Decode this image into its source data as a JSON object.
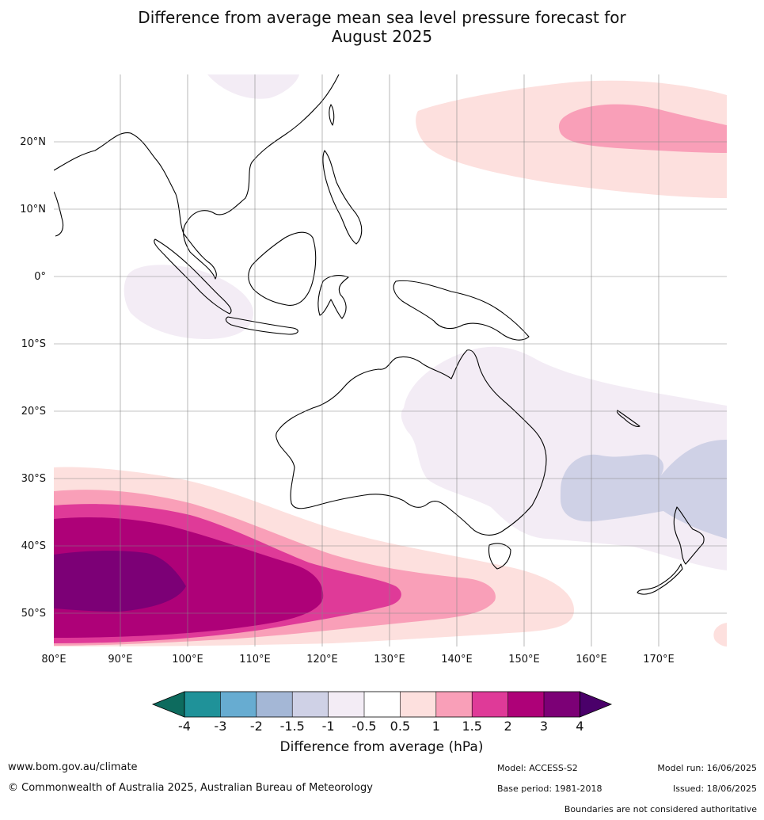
{
  "title_line1": "Difference from average mean sea level pressure forecast for",
  "title_line2": "August 2025",
  "lat_labels": [
    "20°N",
    "10°N",
    "0°",
    "10°S",
    "20°S",
    "30°S",
    "40°S",
    "50°S"
  ],
  "lon_labels": [
    "80°E",
    "90°E",
    "100°E",
    "110°E",
    "120°E",
    "130°E",
    "140°E",
    "150°E",
    "160°E",
    "170°E"
  ],
  "colorbar": {
    "title": "Difference from average (hPa)",
    "ticks": [
      "-4",
      "-3",
      "-2",
      "-1.5",
      "-1",
      "-0.5",
      "0.5",
      "1",
      "1.5",
      "2",
      "3",
      "4"
    ],
    "colors": [
      "#0d6b5e",
      "#1f9299",
      "#67acd1",
      "#a4b7d6",
      "#cfd1e6",
      "#f3ecf5",
      "#ffffff",
      "#fde0de",
      "#f99fb8",
      "#df3a98",
      "#ae0178",
      "#7c0076",
      "#4a006a"
    ]
  },
  "footer": {
    "website": "www.bom.gov.au/climate",
    "copyright": "© Commonwealth of Australia 2025, Australian Bureau of Meteorology",
    "model": "Model: ACCESS-S2",
    "base_period": "Base period: 1981-2018",
    "model_run": "Model run: 16/06/2025",
    "issued": "Issued: 18/06/2025",
    "disclaimer": "Boundaries are not considered authoritative"
  }
}
